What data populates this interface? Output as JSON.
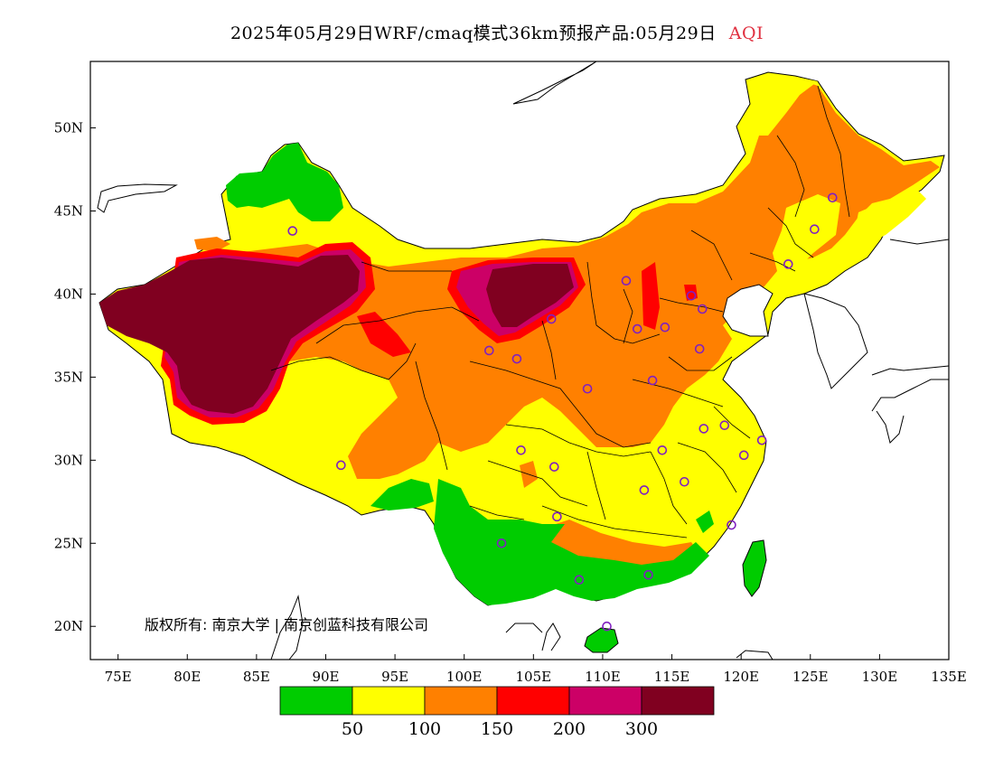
{
  "title": {
    "main": "2025年05月29日WRF/cmaq模式36km预报产品:05月29日",
    "variable": "AQI"
  },
  "map": {
    "lon_range": [
      73,
      135
    ],
    "lat_range": [
      18,
      54
    ],
    "lon_ticks": [
      "75E",
      "80E",
      "85E",
      "90E",
      "95E",
      "100E",
      "105E",
      "110E",
      "115E",
      "120E",
      "125E",
      "130E",
      "135E"
    ],
    "lat_ticks": [
      "50N",
      "45N",
      "40N",
      "35N",
      "30N",
      "25N",
      "20N"
    ],
    "copyright": "版权所有: 南京大学 | 南京创蓝科技有限公司"
  },
  "legend": {
    "colors": [
      "#00cc00",
      "#ffff00",
      "#ff8000",
      "#ff0000",
      "#cc0066",
      "#800020"
    ],
    "labels": [
      "50",
      "100",
      "150",
      "200",
      "300"
    ]
  },
  "stations": [
    [
      87.6,
      43.8
    ],
    [
      91.1,
      29.7
    ],
    [
      101.8,
      36.6
    ],
    [
      103.8,
      36.1
    ],
    [
      106.3,
      38.5
    ],
    [
      111.7,
      40.8
    ],
    [
      112.5,
      37.9
    ],
    [
      114.5,
      38.0
    ],
    [
      116.4,
      39.9
    ],
    [
      117.2,
      39.1
    ],
    [
      117.0,
      36.7
    ],
    [
      113.6,
      34.8
    ],
    [
      108.9,
      34.3
    ],
    [
      104.1,
      30.6
    ],
    [
      106.5,
      29.6
    ],
    [
      114.3,
      30.6
    ],
    [
      113.0,
      28.2
    ],
    [
      115.9,
      28.7
    ],
    [
      117.3,
      31.9
    ],
    [
      118.8,
      32.1
    ],
    [
      120.2,
      30.3
    ],
    [
      121.5,
      31.2
    ],
    [
      119.3,
      26.1
    ],
    [
      113.3,
      23.1
    ],
    [
      108.3,
      22.8
    ],
    [
      110.3,
      20.0
    ],
    [
      102.7,
      25.0
    ],
    [
      106.7,
      26.6
    ],
    [
      123.4,
      41.8
    ],
    [
      125.3,
      43.9
    ],
    [
      126.6,
      45.8
    ]
  ]
}
